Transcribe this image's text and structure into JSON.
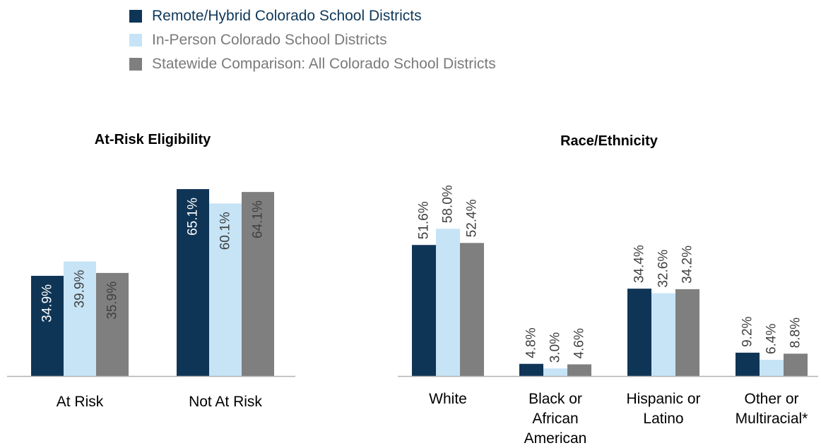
{
  "legend": {
    "items": [
      {
        "label": "Remote/Hybrid Colorado School Districts",
        "color": "#0f3556"
      },
      {
        "label": "In-Person Colorado School Districts",
        "color": "#c6e4f6"
      },
      {
        "label": "Statewide Comparison:  All Colorado School Districts",
        "color": "#7f7f7f"
      }
    ]
  },
  "colors": {
    "remote_hybrid": "#0f3556",
    "in_person": "#c6e4f6",
    "statewide": "#7f7f7f",
    "axis": "#b3b3b3"
  },
  "chart_data": [
    {
      "type": "bar",
      "title": "At-Risk Eligibility",
      "categories": [
        "At Risk",
        "Not At Risk"
      ],
      "series": [
        {
          "name": "Remote/Hybrid Colorado School Districts",
          "values": [
            34.9,
            65.1
          ],
          "labels": [
            "34.9%",
            "65.1%"
          ]
        },
        {
          "name": "In-Person Colorado School Districts",
          "values": [
            39.9,
            60.1
          ],
          "labels": [
            "39.9%",
            "60.1%"
          ]
        },
        {
          "name": "Statewide Comparison:  All Colorado School Districts",
          "values": [
            35.9,
            64.1
          ],
          "labels": [
            "35.9%",
            "64.1%"
          ]
        }
      ],
      "label_position": "inside",
      "ylim": [
        0,
        100
      ],
      "grid": false
    },
    {
      "type": "bar",
      "title": "Race/Ethnicity",
      "categories": [
        [
          "White"
        ],
        [
          "Black or",
          "African",
          "American"
        ],
        [
          "Hispanic or",
          "Latino"
        ],
        [
          "Other or",
          "Multiracial*"
        ]
      ],
      "series": [
        {
          "name": "Remote/Hybrid Colorado School Districts",
          "values": [
            51.6,
            4.8,
            34.4,
            9.2
          ],
          "labels": [
            "51.6%",
            "4.8%",
            "34.4%",
            "9.2%"
          ]
        },
        {
          "name": "In-Person Colorado School Districts",
          "values": [
            58.0,
            3.0,
            32.6,
            6.4
          ],
          "labels": [
            "58.0%",
            "3.0%",
            "32.6%",
            "6.4%"
          ]
        },
        {
          "name": "Statewide Comparison:  All Colorado School Districts",
          "values": [
            52.4,
            4.6,
            34.2,
            8.8
          ],
          "labels": [
            "52.4%",
            "4.6%",
            "34.2%",
            "8.8%"
          ]
        }
      ],
      "label_position": "above",
      "ylim": [
        0,
        100
      ],
      "grid": false
    }
  ]
}
